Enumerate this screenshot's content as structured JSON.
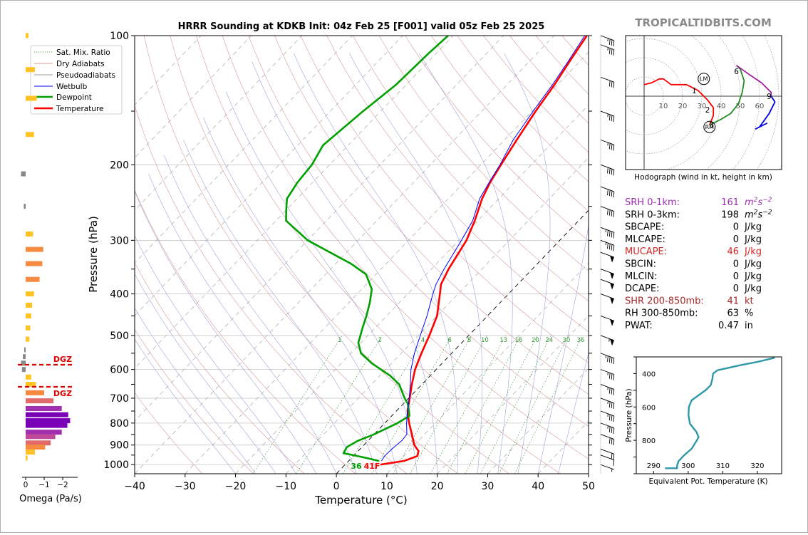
{
  "title": "HRRR Sounding at KDKB Init: 04z Feb 25 [F001] valid 05z Feb 25 2025",
  "watermark": "TROPICALTIDBITS.COM",
  "skewt": {
    "xlabel": "Temperature (°C)",
    "ylabel": "Pressure (hPa)",
    "pressure_ticks": [
      "100",
      "200",
      "300",
      "400",
      "500",
      "600",
      "700",
      "800",
      "900",
      "1000"
    ],
    "temp_ticks": [
      "−40",
      "−30",
      "−20",
      "−10",
      "0",
      "10",
      "20",
      "30",
      "40",
      "50"
    ],
    "mixratio_labels": [
      "1",
      "2",
      "4",
      "6",
      "8",
      "10",
      "13",
      "16",
      "20",
      "24",
      "30",
      "36"
    ],
    "surface_temp_label": "41F",
    "surface_dewpoint_label": "36",
    "legend": [
      "Sat. Mix. Ratio",
      "Dry Adiabats",
      "Pseudoadiabats",
      "Wetbulb",
      "Dewpoint",
      "Temperature"
    ]
  },
  "omega": {
    "xlabel": "Omega (Pa/s)",
    "ticks": [
      "0",
      "−1",
      "−2"
    ],
    "dgz_label": "DGZ"
  },
  "hodograph": {
    "caption": "Hodograph (wind in kt, height in km)",
    "ring_labels": [
      "10",
      "20",
      "30",
      "40",
      "50",
      "60"
    ],
    "height_labels": [
      "1",
      "2",
      "3",
      "6",
      "9"
    ],
    "lm_label": "LM",
    "rm_label": "RM"
  },
  "indices": [
    {
      "label": "SRH 0-1km:",
      "value": "161",
      "unit": "m2s-2",
      "color": "#9b2fae"
    },
    {
      "label": "SRH 0-3km:",
      "value": "198",
      "unit": "m2s-2",
      "color": "#000000"
    },
    {
      "label": "SBCAPE:",
      "value": "0",
      "unit": "J/kg",
      "color": "#000000"
    },
    {
      "label": "MLCAPE:",
      "value": "0",
      "unit": "J/kg",
      "color": "#000000"
    },
    {
      "label": "MUCAPE:",
      "value": "46",
      "unit": "J/kg",
      "color": "#d62728"
    },
    {
      "label": "SBCIN:",
      "value": "0",
      "unit": "J/kg",
      "color": "#000000"
    },
    {
      "label": "MLCIN:",
      "value": "0",
      "unit": "J/kg",
      "color": "#000000"
    },
    {
      "label": "DCAPE:",
      "value": "0",
      "unit": "J/kg",
      "color": "#000000"
    },
    {
      "label": "SHR 200-850mb:",
      "value": "41",
      "unit": "kt",
      "color": "#a52a2a"
    },
    {
      "label": "RH 300-850mb:",
      "value": "63",
      "unit": "%",
      "color": "#000000"
    },
    {
      "label": "PWAT:",
      "value": "0.47",
      "unit": "in",
      "color": "#000000"
    }
  ],
  "theta_e": {
    "xlabel": "Equivalent Pot. Temperature (K)",
    "ylabel": "Pressure (hPa)",
    "xticks": [
      "290",
      "300",
      "310",
      "320"
    ],
    "yticks": [
      "400",
      "600",
      "800"
    ]
  },
  "chart_data": [
    {
      "type": "line",
      "name": "skew-t",
      "title": "HRRR Sounding at KDKB Init: 04z Feb 25 [F001] valid 05z Feb 25 2025",
      "xlabel": "Temperature (°C)",
      "ylabel": "Pressure (hPa)",
      "xlim": [
        -40,
        50
      ],
      "ylim": [
        1050,
        100
      ],
      "yscale": "log",
      "skewed_temperature_axis": true,
      "grid": true,
      "legend_position": "top-left",
      "series": [
        {
          "name": "Temperature",
          "color": "#ff0000",
          "points": [
            [
              1000,
              7
            ],
            [
              980,
              11
            ],
            [
              955,
              12.7
            ],
            [
              930,
              12
            ],
            [
              900,
              10
            ],
            [
              850,
              7.5
            ],
            [
              800,
              4.8
            ],
            [
              750,
              2.2
            ],
            [
              700,
              0.2
            ],
            [
              650,
              -2
            ],
            [
              600,
              -4.2
            ],
            [
              550,
              -6
            ],
            [
              500,
              -7.8
            ],
            [
              450,
              -10
            ],
            [
              400,
              -13.6
            ],
            [
              380,
              -15.2
            ],
            [
              350,
              -16.6
            ],
            [
              300,
              -18.5
            ],
            [
              270,
              -20.6
            ],
            [
              240,
              -23.3
            ],
            [
              220,
              -24.8
            ],
            [
              200,
              -26
            ],
            [
              175,
              -27.6
            ],
            [
              150,
              -29.3
            ],
            [
              130,
              -30.6
            ],
            [
              115,
              -32
            ],
            [
              100,
              -33.5
            ]
          ]
        },
        {
          "name": "Dewpoint",
          "color": "#00a000",
          "points": [
            [
              980,
              6
            ],
            [
              960,
              2
            ],
            [
              940,
              -2.5
            ],
            [
              910,
              -3
            ],
            [
              880,
              -2
            ],
            [
              850,
              0
            ],
            [
              800,
              2.5
            ],
            [
              770,
              3.5
            ],
            [
              750,
              2.5
            ],
            [
              720,
              0.8
            ],
            [
              700,
              -0.8
            ],
            [
              650,
              -4.5
            ],
            [
              620,
              -8
            ],
            [
              580,
              -14
            ],
            [
              550,
              -18
            ],
            [
              520,
              -20.5
            ],
            [
              480,
              -22.5
            ],
            [
              450,
              -24
            ],
            [
              420,
              -25.8
            ],
            [
              390,
              -28
            ],
            [
              360,
              -32
            ],
            [
              340,
              -37
            ],
            [
              300,
              -50
            ],
            [
              270,
              -58
            ],
            [
              255,
              -60
            ],
            [
              240,
              -62
            ],
            [
              220,
              -63
            ],
            [
              200,
              -63.5
            ],
            [
              180,
              -65
            ],
            [
              150,
              -63.5
            ],
            [
              130,
              -62
            ],
            [
              110,
              -61.5
            ],
            [
              100,
              -61
            ]
          ]
        },
        {
          "name": "Wetbulb",
          "color": "#0000ff",
          "points": [
            [
              980,
              6.5
            ],
            [
              955,
              6.2
            ],
            [
              920,
              6.3
            ],
            [
              880,
              6.7
            ],
            [
              850,
              6.5
            ],
            [
              800,
              4.3
            ],
            [
              750,
              2.2
            ],
            [
              700,
              0.1
            ],
            [
              650,
              -2.3
            ],
            [
              600,
              -5
            ],
            [
              550,
              -7.4
            ],
            [
              500,
              -9.6
            ],
            [
              450,
              -12
            ],
            [
              400,
              -15
            ],
            [
              380,
              -16.2
            ],
            [
              350,
              -17.5
            ],
            [
              300,
              -19.5
            ],
            [
              270,
              -21
            ],
            [
              240,
              -23.8
            ],
            [
              220,
              -25
            ],
            [
              200,
              -26.2
            ],
            [
              175,
              -28.3
            ],
            [
              150,
              -29.8
            ],
            [
              130,
              -31
            ],
            [
              115,
              -32.3
            ],
            [
              100,
              -33.9
            ]
          ]
        }
      ],
      "surface": {
        "temperature_f": 41,
        "dewpoint_f": 36
      },
      "wind_barbs_kt": [
        [
          1000,
          5
        ],
        [
          950,
          10
        ],
        [
          920,
          20
        ],
        [
          850,
          30
        ],
        [
          800,
          35
        ],
        [
          750,
          35
        ],
        [
          700,
          35
        ],
        [
          650,
          35
        ],
        [
          600,
          35
        ],
        [
          550,
          45
        ],
        [
          500,
          55
        ],
        [
          450,
          50
        ],
        [
          400,
          50
        ],
        [
          370,
          50
        ],
        [
          350,
          50
        ],
        [
          320,
          50
        ],
        [
          300,
          45
        ],
        [
          280,
          45
        ],
        [
          250,
          40
        ],
        [
          225,
          40
        ],
        [
          200,
          40
        ],
        [
          175,
          35
        ],
        [
          150,
          35
        ],
        [
          125,
          30
        ],
        [
          105,
          35
        ],
        [
          100,
          35
        ]
      ]
    },
    {
      "type": "bar",
      "name": "omega",
      "xlabel": "Omega (Pa/s)",
      "xlim": [
        0.5,
        -3
      ],
      "ylabel": "Pressure (hPa)",
      "pressure": [
        100,
        120,
        140,
        170,
        210,
        250,
        290,
        315,
        340,
        370,
        400,
        425,
        450,
        480,
        510,
        540,
        560,
        580,
        600,
        625,
        650,
        680,
        710,
        740,
        765,
        790,
        810,
        840,
        860,
        890,
        910,
        935,
        965
      ],
      "values": [
        -0.15,
        -0.5,
        -0.6,
        -0.45,
        0.25,
        0.1,
        -0.4,
        -0.95,
        -0.9,
        -0.75,
        -0.45,
        -0.35,
        -0.3,
        -0.25,
        -0.2,
        0.05,
        0.15,
        0.25,
        0.2,
        -0.3,
        -0.55,
        -1.0,
        -1.5,
        -1.95,
        -2.3,
        -2.4,
        -2.25,
        -1.95,
        -1.6,
        -1.35,
        -1.05,
        -0.5,
        -0.1
      ],
      "dgz": [
        {
          "pressure": 600,
          "label": "DGZ"
        },
        {
          "pressure": 660,
          "label": "DGZ"
        }
      ]
    },
    {
      "type": "line",
      "name": "hodograph",
      "xlabel": "Hodograph (wind in kt, height in km)",
      "rings_kt": [
        10,
        20,
        30,
        40,
        50,
        60
      ],
      "series": [
        {
          "name": "0-1 km",
          "color": "#ff0000",
          "points": [
            [
              0,
              6
            ],
            [
              4,
              7
            ],
            [
              8,
              9
            ],
            [
              10,
              9
            ],
            [
              14,
              6
            ],
            [
              22,
              6
            ],
            [
              28,
              3
            ]
          ]
        },
        {
          "name": "1-3 km",
          "color": "#ff0000",
          "points": [
            [
              28,
              3
            ],
            [
              33,
              -2
            ],
            [
              36,
              -6
            ],
            [
              36,
              -10
            ],
            [
              34,
              -15
            ]
          ]
        },
        {
          "name": "3-6 km",
          "color": "#228b22",
          "points": [
            [
              34,
              -15
            ],
            [
              40,
              -12
            ],
            [
              45,
              -9
            ],
            [
              49,
              -4
            ],
            [
              51,
              2
            ],
            [
              52,
              8
            ],
            [
              50,
              14
            ],
            [
              48,
              16
            ]
          ]
        },
        {
          "name": "6-9 km",
          "color": "#a020a0",
          "points": [
            [
              48,
              16
            ],
            [
              55,
              11
            ],
            [
              61,
              7
            ],
            [
              66,
              2
            ],
            [
              66,
              0
            ]
          ]
        },
        {
          "name": "9+ km",
          "color": "#0000dd",
          "points": [
            [
              66,
              0
            ],
            [
              68,
              -3
            ],
            [
              65,
              -9
            ],
            [
              60,
              -16
            ],
            [
              58,
              -17
            ],
            [
              62,
              -15
            ],
            [
              64,
              -14
            ]
          ]
        }
      ],
      "height_markers": [
        {
          "label": "1",
          "u": 26,
          "v": 3
        },
        {
          "label": "2",
          "u": 33,
          "v": -7
        },
        {
          "label": "3",
          "u": 35,
          "v": -15
        },
        {
          "label": "6",
          "u": 48,
          "v": 13
        },
        {
          "label": "9",
          "u": 65,
          "v": 0
        }
      ],
      "storm_motion": {
        "LM": [
          31,
          9
        ],
        "RM": [
          34,
          -16
        ]
      }
    },
    {
      "type": "line",
      "name": "theta-e",
      "xlabel": "Equivalent Pot. Temperature (K)",
      "ylabel": "Pressure (hPa)",
      "xlim": [
        285,
        327
      ],
      "ylim": [
        1000,
        300
      ],
      "series": [
        {
          "name": "theta-e",
          "color": "#2f98a8",
          "points": [
            [
              967,
              293.3
            ],
            [
              967,
              296.8
            ],
            [
              950,
              296.8
            ],
            [
              925,
              297.2
            ],
            [
              890,
              298.8
            ],
            [
              850,
              301
            ],
            [
              800,
              302.5
            ],
            [
              780,
              303
            ],
            [
              750,
              302.4
            ],
            [
              700,
              300.5
            ],
            [
              650,
              300.1
            ],
            [
              600,
              300.2
            ],
            [
              560,
              301
            ],
            [
              530,
              303
            ],
            [
              500,
              305
            ],
            [
              470,
              306.5
            ],
            [
              430,
              307
            ],
            [
              400,
              307.2
            ],
            [
              380,
              308.5
            ],
            [
              350,
              315
            ],
            [
              330,
              320
            ],
            [
              305,
              325
            ]
          ]
        }
      ]
    }
  ]
}
